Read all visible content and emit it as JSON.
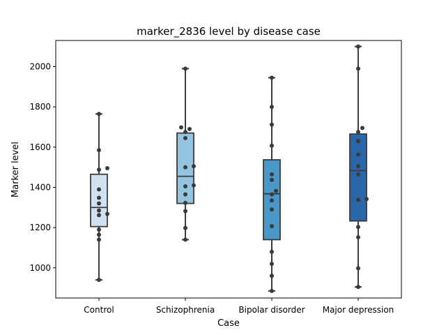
{
  "chart_data": {
    "type": "box",
    "title": "marker_2836 level by disease case",
    "xlabel": "Case",
    "ylabel": "Marker level",
    "ylim": [
      850,
      2130
    ],
    "yticks": [
      1000,
      1200,
      1400,
      1600,
      1800,
      2000
    ],
    "grid": false,
    "legend": "none",
    "categories": [
      "Control",
      "Schizophrenia",
      "Bipolar disorder",
      "Major depression"
    ],
    "colors": [
      "#d0e1f2",
      "#94c4df",
      "#4a98c9",
      "#2a66aa"
    ],
    "boxes": [
      {
        "min": 940,
        "q1": 1205,
        "median": 1300,
        "q3": 1465,
        "max": 1765
      },
      {
        "min": 1140,
        "q1": 1320,
        "median": 1455,
        "q3": 1670,
        "max": 1990
      },
      {
        "min": 885,
        "q1": 1140,
        "median": 1368,
        "q3": 1537,
        "max": 1945
      },
      {
        "min": 905,
        "q1": 1233,
        "median": 1483,
        "q3": 1665,
        "max": 2100
      }
    ],
    "points": [
      [
        940,
        1140,
        1165,
        1190,
        1262,
        1268,
        1285,
        1320,
        1348,
        1390,
        1488,
        1495,
        1585,
        1765
      ],
      [
        1140,
        1198,
        1282,
        1323,
        1365,
        1405,
        1410,
        1500,
        1505,
        1645,
        1675,
        1690,
        1698,
        1990
      ],
      [
        885,
        960,
        1020,
        1080,
        1207,
        1290,
        1335,
        1365,
        1382,
        1437,
        1465,
        1607,
        1712,
        1800,
        1945
      ],
      [
        905,
        998,
        1152,
        1203,
        1338,
        1342,
        1465,
        1505,
        1563,
        1630,
        1675,
        1695,
        1990,
        2100
      ]
    ]
  }
}
